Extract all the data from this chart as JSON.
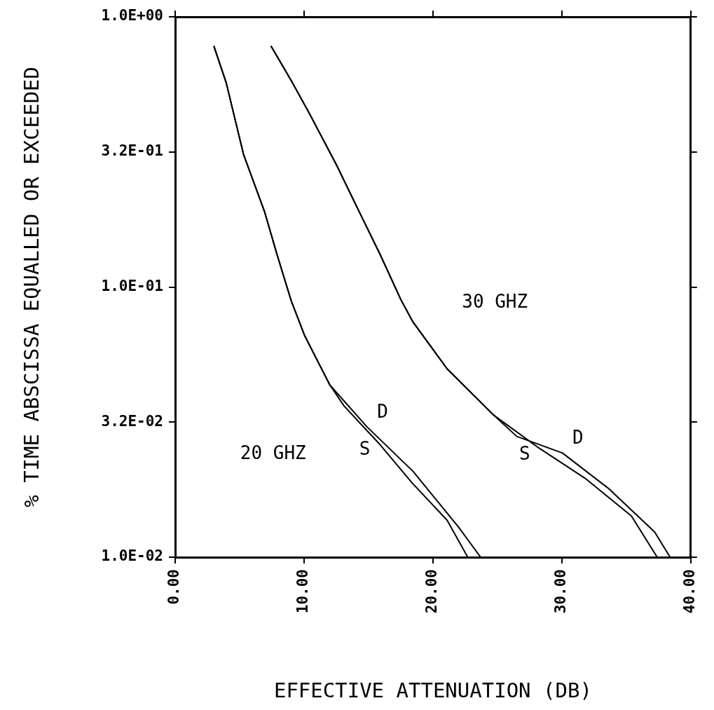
{
  "chart_data": {
    "type": "line",
    "xlabel": "EFFECTIVE ATTENUATION (DB)",
    "ylabel": "% TIME ABSCISSA EQUALLED OR EXCEEDED",
    "log": "y",
    "grid": false,
    "legend": false,
    "marker": "none",
    "line_style": "solid",
    "xlim": [
      0,
      40
    ],
    "xticks": [
      {
        "value": 0,
        "label": "0.00"
      },
      {
        "value": 10,
        "label": "10.00"
      },
      {
        "value": 20,
        "label": "20.00"
      },
      {
        "value": 30,
        "label": "30.00"
      },
      {
        "value": 40,
        "label": "40.00"
      }
    ],
    "ylim": [
      0.01,
      1
    ],
    "yticks": [
      {
        "value": 0.01,
        "label": "1.0E-02"
      },
      {
        "value": 0.0316,
        "label": "3.2E-02"
      },
      {
        "value": 0.1,
        "label": "1.0E-01"
      },
      {
        "value": 0.316,
        "label": "3.2E-01"
      },
      {
        "value": 1,
        "label": "1.0E+00"
      }
    ],
    "series": [
      {
        "name": "S",
        "color": "#000000",
        "x": [
          3.0,
          3.96,
          5.3,
          6.95,
          7.9,
          9.0,
          10.05,
          12.0,
          13.1,
          15.8,
          18.4,
          21.1,
          22.7
        ],
        "values": [
          0.78,
          0.57,
          0.31,
          0.189,
          0.132,
          0.089,
          0.066,
          0.0434,
          0.0363,
          0.0264,
          0.0188,
          0.0137,
          0.01
        ]
      },
      {
        "name": "D",
        "color": "#000000",
        "x": [
          3.0,
          3.96,
          5.3,
          6.95,
          7.9,
          9.0,
          10.05,
          12.0,
          14.9,
          18.45,
          22.0,
          23.7
        ],
        "values": [
          0.78,
          0.57,
          0.31,
          0.189,
          0.132,
          0.089,
          0.066,
          0.0434,
          0.0303,
          0.0208,
          0.0129,
          0.01
        ]
      },
      {
        "name": "S",
        "color": "#000000",
        "x": [
          7.43,
          9.1,
          10.4,
          12.5,
          14.3,
          15.9,
          17.5,
          18.45,
          21.1,
          24.7,
          28.2,
          31.8,
          35.4,
          37.4
        ],
        "values": [
          0.78,
          0.57,
          0.44,
          0.284,
          0.189,
          0.132,
          0.09,
          0.0742,
          0.0498,
          0.0336,
          0.0254,
          0.0196,
          0.0142,
          0.01
        ]
      },
      {
        "name": "D",
        "color": "#000000",
        "x": [
          7.43,
          9.1,
          10.4,
          12.5,
          14.3,
          15.9,
          17.5,
          18.45,
          21.1,
          24.7,
          26.5,
          30.05,
          33.6,
          37.2,
          38.4
        ],
        "values": [
          0.78,
          0.57,
          0.44,
          0.284,
          0.189,
          0.132,
          0.09,
          0.0742,
          0.0498,
          0.0336,
          0.028,
          0.0243,
          0.018,
          0.0124,
          0.01
        ]
      }
    ],
    "annotations": [
      "20 GHZ",
      "30 GHZ"
    ]
  }
}
